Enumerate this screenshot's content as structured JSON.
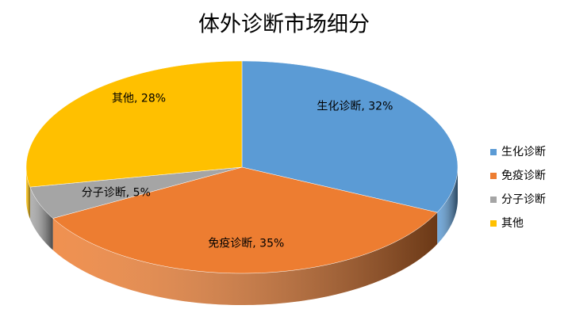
{
  "chart_data": {
    "type": "pie",
    "title": "体外诊断市场细分",
    "categories": [
      "生化诊断",
      "免疫诊断",
      "分子诊断",
      "其他"
    ],
    "values": [
      32,
      35,
      5,
      28
    ],
    "value_labels": [
      "生化诊断, 32%",
      "免疫诊断, 35%",
      "分子诊断, 5%",
      "其他, 28%"
    ],
    "colors": [
      "#5b9bd5",
      "#ed7d31",
      "#a5a5a5",
      "#ffc000"
    ],
    "legend": "right"
  }
}
